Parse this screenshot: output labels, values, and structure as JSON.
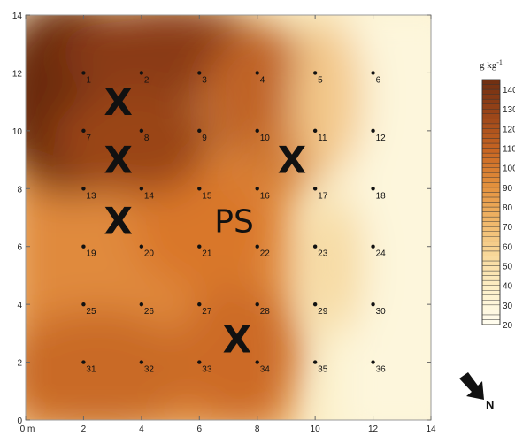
{
  "map": {
    "x_range": [
      0,
      14
    ],
    "y_range": [
      0,
      14
    ],
    "x_ticks": [
      {
        "value": 0,
        "label": "0 m"
      },
      {
        "value": 2,
        "label": "2"
      },
      {
        "value": 4,
        "label": "4"
      },
      {
        "value": 6,
        "label": "6"
      },
      {
        "value": 8,
        "label": "8"
      },
      {
        "value": 10,
        "label": "10"
      },
      {
        "value": 12,
        "label": "12"
      },
      {
        "value": 14,
        "label": "14"
      }
    ],
    "y_ticks": [
      {
        "value": 0,
        "label": "0"
      },
      {
        "value": 2,
        "label": "2"
      },
      {
        "value": 4,
        "label": "4"
      },
      {
        "value": 6,
        "label": "6"
      },
      {
        "value": 8,
        "label": "8"
      },
      {
        "value": 10,
        "label": "10"
      },
      {
        "value": 12,
        "label": "12"
      },
      {
        "value": 14,
        "label": "14"
      }
    ],
    "plots": [
      {
        "id": "1",
        "x": 2,
        "y": 12
      },
      {
        "id": "2",
        "x": 4,
        "y": 12
      },
      {
        "id": "3",
        "x": 6,
        "y": 12
      },
      {
        "id": "4",
        "x": 8,
        "y": 12
      },
      {
        "id": "5",
        "x": 10,
        "y": 12
      },
      {
        "id": "6",
        "x": 12,
        "y": 12
      },
      {
        "id": "7",
        "x": 2,
        "y": 10
      },
      {
        "id": "8",
        "x": 4,
        "y": 10
      },
      {
        "id": "9",
        "x": 6,
        "y": 10
      },
      {
        "id": "10",
        "x": 8,
        "y": 10
      },
      {
        "id": "11",
        "x": 10,
        "y": 10
      },
      {
        "id": "12",
        "x": 12,
        "y": 10
      },
      {
        "id": "13",
        "x": 2,
        "y": 8
      },
      {
        "id": "14",
        "x": 4,
        "y": 8
      },
      {
        "id": "15",
        "x": 6,
        "y": 8
      },
      {
        "id": "16",
        "x": 8,
        "y": 8
      },
      {
        "id": "17",
        "x": 10,
        "y": 8
      },
      {
        "id": "18",
        "x": 12,
        "y": 8
      },
      {
        "id": "19",
        "x": 2,
        "y": 6
      },
      {
        "id": "20",
        "x": 4,
        "y": 6
      },
      {
        "id": "21",
        "x": 6,
        "y": 6
      },
      {
        "id": "22",
        "x": 8,
        "y": 6
      },
      {
        "id": "23",
        "x": 10,
        "y": 6
      },
      {
        "id": "24",
        "x": 12,
        "y": 6
      },
      {
        "id": "25",
        "x": 2,
        "y": 4
      },
      {
        "id": "26",
        "x": 4,
        "y": 4
      },
      {
        "id": "27",
        "x": 6,
        "y": 4
      },
      {
        "id": "28",
        "x": 8,
        "y": 4
      },
      {
        "id": "29",
        "x": 10,
        "y": 4
      },
      {
        "id": "30",
        "x": 12,
        "y": 4
      },
      {
        "id": "31",
        "x": 2,
        "y": 2
      },
      {
        "id": "32",
        "x": 4,
        "y": 2
      },
      {
        "id": "33",
        "x": 6,
        "y": 2
      },
      {
        "id": "34",
        "x": 8,
        "y": 2
      },
      {
        "id": "35",
        "x": 10,
        "y": 2
      },
      {
        "id": "36",
        "x": 12,
        "y": 2
      }
    ],
    "markers": [
      {
        "label": "X",
        "x": 3.2,
        "y": 11.0
      },
      {
        "label": "X",
        "x": 3.2,
        "y": 9.0
      },
      {
        "label": "X",
        "x": 3.2,
        "y": 6.9
      },
      {
        "label": "X",
        "x": 9.2,
        "y": 9.0
      },
      {
        "label": "X",
        "x": 7.3,
        "y": 2.8
      }
    ],
    "ps_label": {
      "text": "PS",
      "x": 7.2,
      "y": 6.9
    }
  },
  "colorbar": {
    "unit": "g kg",
    "unit_superscript": "-1",
    "min": 20,
    "max": 145,
    "tick_values": [
      20,
      30,
      40,
      50,
      60,
      70,
      80,
      90,
      100,
      110,
      120,
      130,
      140
    ],
    "colors": [
      "#fffdf0",
      "#fdf0c8",
      "#f8d89a",
      "#f0b466",
      "#e3903c",
      "#c76522",
      "#9b4519",
      "#6e2e12"
    ]
  },
  "north_arrow": {
    "label": "N"
  }
}
